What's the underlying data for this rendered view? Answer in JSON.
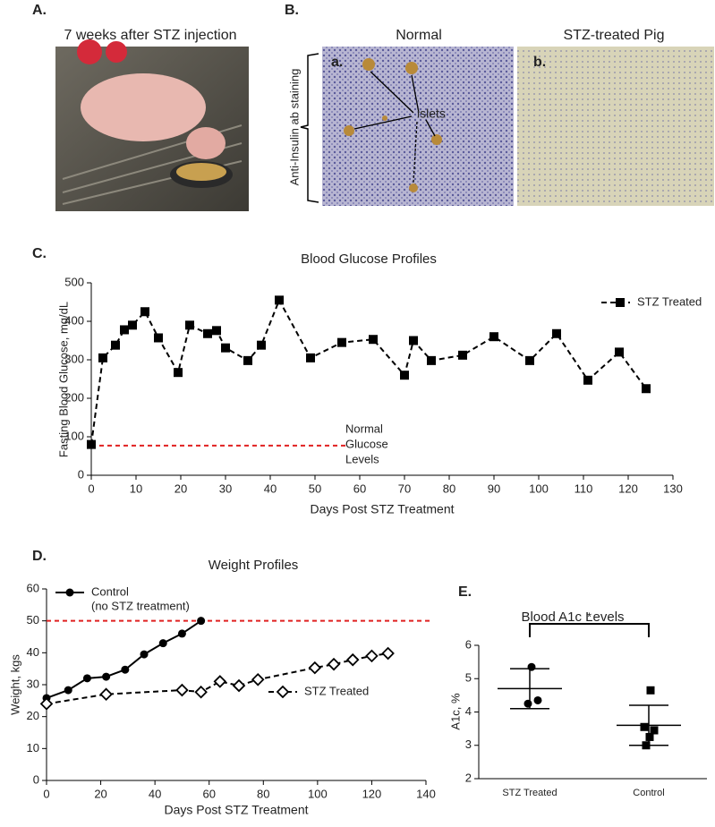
{
  "figure": {
    "panel_a": {
      "label": "A.",
      "caption": "7 weeks after STZ injection"
    },
    "panel_b": {
      "label": "B.",
      "left_title": "Normal",
      "right_title": "STZ-treated Pig",
      "left_tag": "a.",
      "right_tag": "b.",
      "annotation": "islets",
      "side_label": "Anti-Insulin ab staining"
    },
    "panel_labels": [
      "C.",
      "D.",
      "E."
    ]
  },
  "chart_data": [
    {
      "type": "line",
      "title": "Blood Glucose Profiles",
      "x_label": "Days Post STZ Treatment",
      "y_label": "Fasting Blood Glucose, mg/dL",
      "xlim": [
        0,
        130
      ],
      "xticks": [
        0,
        10,
        20,
        30,
        40,
        50,
        60,
        70,
        80,
        90,
        100,
        110,
        120,
        130
      ],
      "ylim": [
        0,
        500
      ],
      "yticks": [
        0,
        100,
        200,
        300,
        400,
        500
      ],
      "series": [
        {
          "name": "STZ Treated",
          "color": "#000000",
          "marker": "square",
          "dashed": true,
          "x": [
            0,
            2.6,
            5.4,
            7.4,
            9.2,
            12,
            15,
            19.4,
            22,
            26,
            28,
            30,
            35,
            38,
            42,
            49,
            56,
            63,
            70,
            72,
            76,
            83,
            90,
            98,
            104,
            111,
            118,
            124
          ],
          "values": [
            80,
            305,
            338,
            378,
            390,
            425,
            357,
            267,
            390,
            368,
            376,
            331,
            298,
            338,
            455,
            305,
            345,
            353,
            260,
            350,
            298,
            312,
            360,
            298,
            368,
            247,
            320,
            225
          ]
        }
      ],
      "hline": {
        "value": 77,
        "xmax": 57,
        "color": "#e02020"
      },
      "annotation": [
        "Normal",
        "Glucose",
        "Levels"
      ]
    },
    {
      "type": "line",
      "title": "Weight Profiles",
      "x_label": "Days Post STZ Treatment",
      "y_label": "Weight, kgs",
      "xlim": [
        0,
        140
      ],
      "xticks": [
        0,
        20,
        40,
        60,
        80,
        100,
        120,
        140
      ],
      "ylim": [
        0,
        60
      ],
      "yticks": [
        0,
        10,
        20,
        30,
        40,
        50,
        60
      ],
      "series": [
        {
          "name": "Control",
          "note": "(no STZ treatment)",
          "color": "#000000",
          "marker": "circle",
          "dashed": false,
          "x": [
            0,
            8,
            15,
            22,
            29,
            36,
            43,
            50,
            57
          ],
          "values": [
            25.8,
            28.3,
            32,
            32.5,
            34.7,
            39.5,
            43,
            46,
            50
          ]
        },
        {
          "name": "STZ Treated",
          "color": "#000000",
          "marker": "diamond",
          "dashed": true,
          "x": [
            0,
            22,
            50,
            57,
            64,
            71,
            78,
            99,
            106,
            113,
            120,
            126
          ],
          "values": [
            24,
            27,
            28.3,
            27.7,
            31,
            29.7,
            31.6,
            35.3,
            36.4,
            37.8,
            39,
            39.8
          ]
        }
      ],
      "hline": {
        "value": 50,
        "color": "#e02020"
      }
    },
    {
      "type": "strip",
      "title": "Blood A1c Levels",
      "y_label": "A1c, %",
      "categories": [
        "STZ Treated",
        "Control"
      ],
      "ylim": [
        2,
        6
      ],
      "yticks": [
        2,
        3,
        4,
        5,
        6
      ],
      "points": [
        [
          5.35,
          4.35,
          4.25
        ],
        [
          4.65,
          3.55,
          3.45,
          3.25,
          3.0
        ]
      ],
      "means": [
        4.7,
        3.6
      ],
      "sd": [
        0.6,
        0.6
      ],
      "significance": "*"
    }
  ]
}
